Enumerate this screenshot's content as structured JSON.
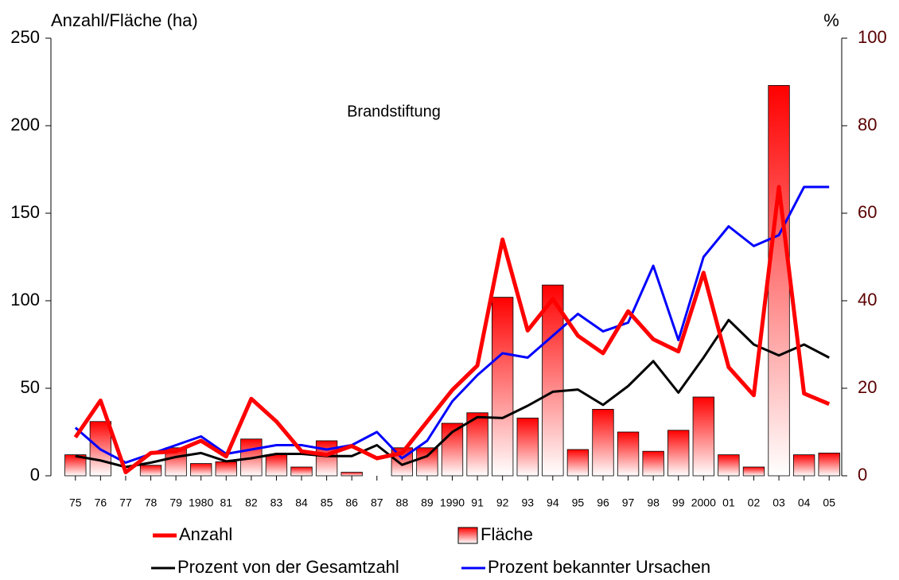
{
  "chart_data": {
    "type": "bar",
    "annotation": "Brandstiftung",
    "y_label": "Anzahl/Fläche (ha)",
    "y2_label": "%",
    "categories": [
      "75",
      "76",
      "77",
      "78",
      "79",
      "1980",
      "81",
      "82",
      "83",
      "84",
      "85",
      "86",
      "87",
      "88",
      "89",
      "1990",
      "91",
      "92",
      "93",
      "94",
      "95",
      "96",
      "97",
      "98",
      "99",
      "2000",
      "01",
      "02",
      "03",
      "04",
      "05"
    ],
    "series": [
      {
        "name": "Fläche",
        "type": "bar",
        "color": "#ff0000",
        "values": [
          12,
          31,
          0,
          6,
          16,
          7,
          8,
          21,
          12,
          5,
          20,
          2,
          0,
          16,
          16,
          30,
          36,
          102,
          33,
          109,
          15,
          38,
          25,
          14,
          26,
          45,
          12,
          5,
          223,
          12,
          13
        ]
      },
      {
        "name": "Anzahl",
        "type": "line",
        "color": "#ff0000",
        "values": [
          22,
          43,
          2,
          13,
          14,
          20,
          11,
          44,
          31,
          14,
          12,
          17,
          10,
          13,
          31,
          49,
          63,
          135,
          83,
          101,
          80,
          70,
          94,
          78,
          71,
          116,
          62,
          46,
          165,
          47,
          41
        ]
      },
      {
        "name": "Prozent von der Gesamtzahl",
        "type": "line",
        "axis": "y2",
        "color": "#000000",
        "values": [
          4.5,
          3.5,
          2,
          3,
          4.3,
          5.2,
          3.3,
          4,
          5,
          5,
          4.5,
          4.5,
          7,
          2.5,
          4.5,
          10,
          13.4,
          13.2,
          16,
          19.2,
          19.7,
          16.2,
          20.5,
          26.2,
          19,
          27,
          35.6,
          30,
          27.5,
          30,
          27
        ]
      },
      {
        "name": "Prozent bekannter Ursachen",
        "type": "line",
        "axis": "y2",
        "color": "#0000ff",
        "values": [
          11,
          6,
          3,
          5,
          7,
          9,
          5,
          6,
          7,
          7,
          6,
          7,
          10,
          4,
          8,
          17,
          23,
          28,
          27,
          32,
          37,
          33,
          35,
          48,
          31,
          50,
          57,
          52.5,
          55,
          66,
          66
        ]
      }
    ],
    "ylim": [
      0,
      250
    ],
    "yticks": [
      0,
      50,
      100,
      150,
      200,
      250
    ],
    "y2lim": [
      0,
      100
    ],
    "y2ticks": [
      0,
      20,
      40,
      60,
      80,
      100
    ],
    "y2_color": "#5a0000"
  }
}
